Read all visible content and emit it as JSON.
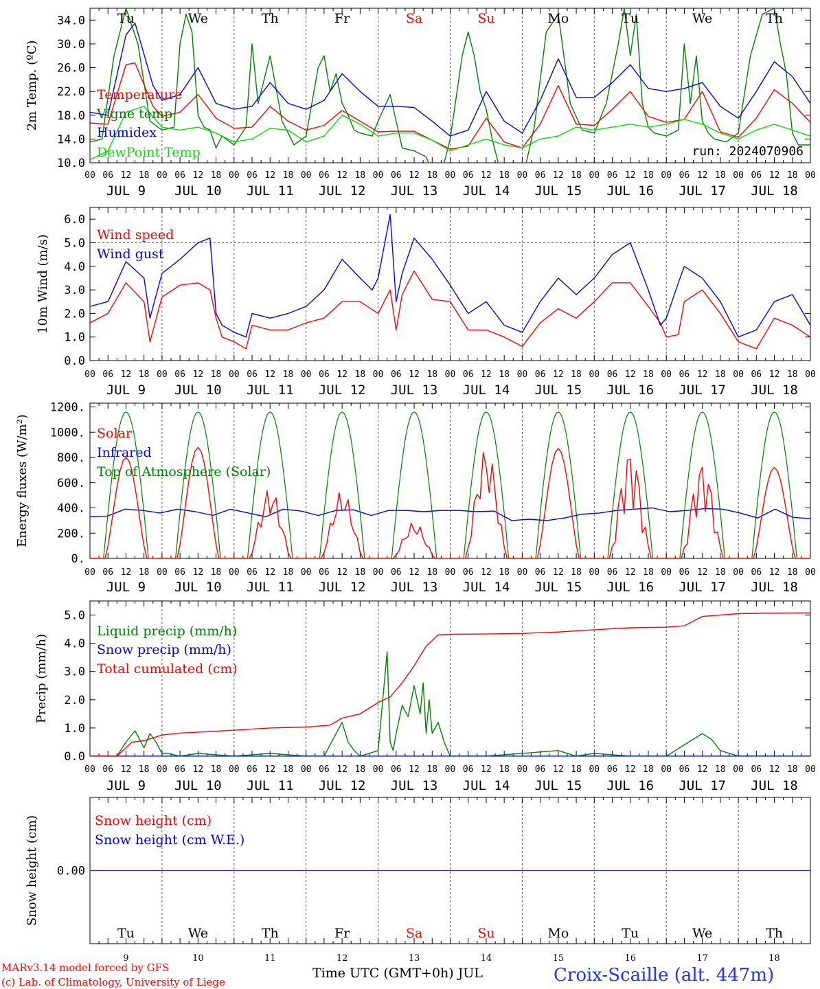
{
  "footer": {
    "model": "MARv3.14 model forced by GFS",
    "copyright": "(c) Lab. of Climatology, University of Liege",
    "time_label": "Time UTC (GMT+0h) JUL",
    "station": "Croix-Scaille (alt. 447m)",
    "run": "run: 2024070906"
  },
  "colors": {
    "red": "#ff0000",
    "green": "#008000",
    "blue": "#0000ff",
    "lightgreen": "#00e000",
    "purple": "#7b1fa2",
    "weekend": "#ff0000"
  },
  "days": [
    "Tu",
    "We",
    "Th",
    "Fr",
    "Sa",
    "Su",
    "Mo",
    "Tu",
    "We",
    "Th"
  ],
  "weekend_days": [
    4,
    5
  ],
  "dates": [
    "JUL  9",
    "JUL 10",
    "JUL 11",
    "JUL 12",
    "JUL 13",
    "JUL 14",
    "JUL 15",
    "JUL 16",
    "JUL 17",
    "JUL 18"
  ],
  "date_numbers": [
    "9",
    "10",
    "11",
    "12",
    "13",
    "14",
    "15",
    "16",
    "17",
    "18"
  ],
  "hour_ticks": [
    "00",
    "06",
    "12",
    "18"
  ],
  "chart_data": [
    {
      "id": "temp",
      "type": "line",
      "ylabel": "2m Temp. (ºC)",
      "ylim": [
        10,
        36
      ],
      "yticks": [
        "10.0",
        "14.0",
        "18.0",
        "22.0",
        "26.0",
        "30.0",
        "34.0"
      ],
      "ytick_values": [
        10,
        14,
        18,
        22,
        26,
        30,
        34
      ],
      "legend": [
        "Temperature",
        "Vigne temp",
        "Humidex",
        "DewPoint Temp"
      ],
      "x_unit": "hours since JUL 9 00 UTC",
      "series": [
        {
          "name": "Temperature",
          "color": "red",
          "x": [
            0,
            6,
            12,
            15,
            21,
            24,
            30,
            36,
            42,
            48,
            54,
            60,
            66,
            72,
            78,
            84,
            90,
            96,
            102,
            108,
            114,
            120,
            126,
            132,
            138,
            144,
            150,
            156,
            162,
            168,
            174,
            180,
            186,
            192,
            198,
            204,
            210,
            216,
            222,
            228,
            234,
            240
          ],
          "y": [
            16.7,
            16.5,
            26.5,
            26.8,
            19.5,
            17.8,
            18.5,
            21.5,
            17.5,
            15.8,
            16.0,
            19.5,
            17.0,
            15.5,
            16.3,
            18.8,
            17.0,
            15.2,
            15.3,
            15.3,
            13.8,
            12.3,
            12.8,
            17.5,
            13.5,
            12.5,
            16.5,
            23.0,
            16.5,
            16.3,
            19.0,
            22.0,
            17.8,
            16.8,
            17.3,
            22.0,
            15.2,
            14.3,
            17.5,
            22.3,
            20.0,
            16.8
          ]
        },
        {
          "name": "Vigne temp",
          "color": "green",
          "x": [
            0,
            4,
            8,
            12,
            16,
            20,
            24,
            28,
            30,
            32,
            34,
            36,
            38,
            40,
            42,
            44,
            48,
            52,
            54,
            56,
            60,
            64,
            66,
            68,
            72,
            76,
            78,
            80,
            82,
            84,
            86,
            88,
            90,
            94,
            96,
            100,
            104,
            108,
            112,
            116,
            120,
            124,
            126,
            128,
            130,
            132,
            134,
            136,
            138,
            140,
            144,
            148,
            152,
            156,
            160,
            164,
            168,
            172,
            176,
            178,
            180,
            182,
            184,
            186,
            188,
            192,
            196,
            198,
            200,
            202,
            204,
            206,
            208,
            212,
            216,
            220,
            224,
            228,
            230,
            232,
            234,
            236,
            240
          ],
          "y": [
            13.5,
            14.0,
            28.0,
            36.0,
            30.0,
            17.0,
            15.5,
            16.0,
            30.0,
            35.0,
            32.0,
            18.0,
            16.0,
            15.5,
            12.5,
            14.5,
            13.0,
            16.0,
            30.0,
            20.0,
            28.0,
            17.0,
            15.0,
            13.0,
            14.5,
            26.0,
            28.0,
            22.0,
            25.0,
            20.0,
            18.0,
            15.5,
            15.0,
            14.5,
            17.0,
            21.5,
            12.5,
            12.0,
            11.0,
            6.0,
            14.0,
            28.0,
            32.0,
            28.0,
            22.0,
            19.0,
            14.0,
            10.0,
            7.0,
            10.0,
            7.0,
            16.0,
            32.0,
            35.0,
            20.0,
            15.5,
            15.0,
            20.0,
            30.0,
            36.0,
            28.0,
            35.0,
            20.0,
            16.0,
            15.0,
            14.5,
            15.5,
            30.0,
            20.0,
            28.0,
            17.0,
            15.0,
            14.0,
            13.5,
            15.0,
            28.0,
            35.0,
            36.0,
            30.0,
            25.0,
            15.0,
            13.0,
            13.0
          ]
        },
        {
          "name": "Humidex",
          "color": "blue",
          "x": [
            0,
            6,
            12,
            15,
            21,
            24,
            30,
            36,
            42,
            48,
            54,
            60,
            66,
            72,
            78,
            84,
            90,
            96,
            102,
            108,
            114,
            120,
            126,
            132,
            138,
            144,
            150,
            156,
            162,
            168,
            174,
            180,
            186,
            192,
            198,
            204,
            210,
            216,
            222,
            228,
            234,
            240
          ],
          "y": [
            18.5,
            18.0,
            31.5,
            33.5,
            23.0,
            20.5,
            21.5,
            26.0,
            20.0,
            19.0,
            19.5,
            23.5,
            20.0,
            19.0,
            20.5,
            25.0,
            22.0,
            19.5,
            19.5,
            19.3,
            17.0,
            14.5,
            15.5,
            22.0,
            17.0,
            15.0,
            20.5,
            27.5,
            21.0,
            21.0,
            23.5,
            26.5,
            22.5,
            22.0,
            22.5,
            23.5,
            19.5,
            17.5,
            22.0,
            27.0,
            24.5,
            20.0
          ]
        },
        {
          "name": "DewPoint Temp",
          "color": "lightgreen",
          "x": [
            0,
            6,
            12,
            18,
            24,
            30,
            36,
            42,
            48,
            54,
            60,
            66,
            72,
            78,
            84,
            90,
            96,
            102,
            108,
            114,
            120,
            126,
            132,
            138,
            144,
            150,
            156,
            162,
            168,
            174,
            180,
            186,
            192,
            198,
            204,
            210,
            216,
            222,
            228,
            234,
            240
          ],
          "y": [
            10.5,
            12.0,
            18.5,
            19.5,
            16.0,
            15.5,
            16.0,
            15.0,
            13.5,
            14.0,
            15.8,
            15.5,
            13.5,
            14.5,
            18.0,
            16.5,
            14.5,
            15.0,
            15.0,
            13.8,
            12.0,
            13.0,
            14.0,
            13.0,
            12.5,
            14.0,
            14.5,
            16.0,
            15.5,
            16.0,
            16.5,
            16.0,
            16.5,
            17.3,
            16.5,
            15.0,
            14.0,
            15.5,
            16.5,
            15.5,
            14.5
          ]
        }
      ]
    },
    {
      "id": "wind",
      "type": "line",
      "ylabel": "10m Wind (m/s)",
      "ylim": [
        0,
        6.5
      ],
      "yticks": [
        "0.0",
        "1.0",
        "2.0",
        "3.0",
        "4.0",
        "5.0",
        "6.0"
      ],
      "ytick_values": [
        0,
        1,
        2,
        3,
        4,
        5,
        6
      ],
      "ref_line": 5.0,
      "legend": [
        "Wind speed",
        "Wind gust"
      ],
      "series": [
        {
          "name": "Wind speed",
          "color": "red",
          "x": [
            0,
            6,
            12,
            18,
            20,
            24,
            30,
            36,
            40,
            42,
            44,
            48,
            52,
            54,
            60,
            66,
            72,
            78,
            84,
            90,
            96,
            100,
            102,
            104,
            108,
            114,
            120,
            126,
            132,
            138,
            144,
            150,
            156,
            162,
            168,
            174,
            180,
            186,
            190,
            192,
            196,
            198,
            204,
            210,
            216,
            222,
            228,
            234,
            240
          ],
          "y": [
            1.6,
            2.0,
            3.3,
            2.5,
            0.8,
            2.7,
            3.2,
            3.3,
            3.0,
            1.8,
            1.0,
            0.8,
            0.5,
            1.5,
            1.3,
            1.3,
            1.6,
            1.8,
            2.5,
            2.5,
            2.0,
            3.0,
            1.3,
            2.8,
            3.8,
            2.6,
            2.5,
            1.3,
            1.3,
            1.0,
            0.6,
            1.6,
            2.2,
            1.8,
            2.5,
            3.3,
            3.3,
            2.3,
            1.6,
            1.0,
            1.1,
            2.5,
            3.0,
            2.0,
            0.8,
            0.5,
            1.8,
            1.5,
            1.0
          ]
        },
        {
          "name": "Wind gust",
          "color": "blue",
          "x": [
            0,
            6,
            12,
            18,
            20,
            24,
            30,
            36,
            40,
            42,
            44,
            48,
            52,
            54,
            60,
            66,
            72,
            78,
            84,
            90,
            94,
            96,
            100,
            102,
            104,
            108,
            114,
            120,
            126,
            132,
            138,
            144,
            150,
            156,
            162,
            168,
            174,
            180,
            186,
            190,
            192,
            196,
            198,
            204,
            210,
            216,
            222,
            228,
            234,
            240
          ],
          "y": [
            2.3,
            2.5,
            4.2,
            3.5,
            1.8,
            3.7,
            4.3,
            5.0,
            5.2,
            2.0,
            1.5,
            1.2,
            1.0,
            2.0,
            1.8,
            2.0,
            2.3,
            3.0,
            4.3,
            3.5,
            3.0,
            3.5,
            6.2,
            2.5,
            3.7,
            5.2,
            4.3,
            3.2,
            2.0,
            2.5,
            1.5,
            1.2,
            2.5,
            3.5,
            2.8,
            3.5,
            4.5,
            5.0,
            3.0,
            1.5,
            1.8,
            3.3,
            4.0,
            3.5,
            2.5,
            1.0,
            1.3,
            2.5,
            2.8,
            1.5
          ]
        }
      ]
    },
    {
      "id": "energy",
      "type": "line",
      "ylabel": "Energy fluxes (W/m²)",
      "ylim": [
        0,
        1230
      ],
      "yticks": [
        "0.",
        "200.",
        "400.",
        "600.",
        "800.",
        "1000.",
        "1200."
      ],
      "ytick_values": [
        0,
        200,
        400,
        600,
        800,
        1000,
        1200
      ],
      "legend": [
        "Solar",
        "Infrared",
        "Top of Atmosphere (Solar)"
      ],
      "toa_peak": 1160,
      "solar_peaks": [
        800,
        880,
        560,
        540,
        290,
        880,
        870,
        860,
        760,
        720
      ],
      "infrared": [
        330,
        335,
        390,
        380,
        360,
        390,
        370,
        340,
        390,
        360,
        330,
        390,
        375,
        340,
        380,
        385,
        340,
        380,
        380,
        370,
        380,
        380,
        370,
        375,
        300,
        310,
        300,
        320,
        350,
        360,
        380,
        390,
        400,
        370,
        380,
        395,
        390,
        360,
        320,
        390,
        325,
        315
      ],
      "series": [
        {
          "name": "Solar",
          "color": "red"
        },
        {
          "name": "Infrared",
          "color": "blue"
        },
        {
          "name": "Top of Atmosphere (Solar)",
          "color": "green"
        }
      ]
    },
    {
      "id": "precip",
      "type": "line",
      "ylabel": "Precip (mm/h)",
      "ylim": [
        0,
        5.5
      ],
      "yticks": [
        "0.0",
        "1.0",
        "2.0",
        "3.0",
        "4.0",
        "5.0"
      ],
      "ytick_values": [
        0,
        1,
        2,
        3,
        4,
        5
      ],
      "legend": [
        "Liquid precip (mm/h)",
        "Snow precip (mm/h)",
        "Total cumulated (cm)"
      ],
      "series": [
        {
          "name": "Liquid precip (mm/h)",
          "color": "green",
          "x": [
            0,
            9,
            12,
            15,
            18,
            20,
            22,
            24,
            26,
            30,
            36,
            48,
            60,
            72,
            78,
            84,
            86,
            88,
            90,
            96,
            99,
            100,
            101,
            102,
            104,
            106,
            108,
            110,
            111,
            112,
            113,
            114,
            116,
            118,
            120,
            132,
            156,
            162,
            168,
            180,
            192,
            204,
            207,
            210,
            216,
            240
          ],
          "y": [
            0,
            0,
            0.5,
            0.9,
            0.3,
            0.8,
            0.5,
            0.1,
            0.1,
            0,
            0.1,
            0,
            0.1,
            0,
            0,
            1.2,
            0.5,
            0.2,
            0,
            0.2,
            3.7,
            0.5,
            0.2,
            0.8,
            1.8,
            1.4,
            2.5,
            1.5,
            2.6,
            0.8,
            2.0,
            0.8,
            1.2,
            0.5,
            0,
            0,
            0.2,
            0,
            0.1,
            0,
            0,
            0.8,
            0.6,
            0.2,
            0,
            0
          ]
        },
        {
          "name": "Snow precip (mm/h)",
          "color": "blue",
          "x": [
            0,
            240
          ],
          "y": [
            0,
            0
          ]
        },
        {
          "name": "Total cumulated (cm)",
          "color": "red",
          "x": [
            0,
            9,
            14,
            18,
            24,
            30,
            36,
            48,
            60,
            72,
            80,
            84,
            90,
            96,
            100,
            104,
            108,
            112,
            116,
            120,
            132,
            144,
            156,
            168,
            180,
            192,
            198,
            204,
            216,
            228,
            240
          ],
          "y": [
            0,
            0,
            0.5,
            0.55,
            0.75,
            0.82,
            0.85,
            0.92,
            1.0,
            1.03,
            1.1,
            1.35,
            1.5,
            1.9,
            2.1,
            2.6,
            3.2,
            3.9,
            4.3,
            4.32,
            4.33,
            4.35,
            4.4,
            4.48,
            4.55,
            4.57,
            4.62,
            4.95,
            5.05,
            5.07,
            5.08
          ]
        }
      ]
    },
    {
      "id": "snow",
      "type": "line",
      "ylabel": "Snow height (cm)",
      "ylim": [
        -1,
        1
      ],
      "yticks": [
        "0.00"
      ],
      "ytick_values": [
        0
      ],
      "legend": [
        "Snow height (cm)",
        "Snow height (cm W.E.)"
      ],
      "series": [
        {
          "name": "Snow height (cm)",
          "color": "red",
          "x": [
            0,
            240
          ],
          "y": [
            0,
            0
          ]
        },
        {
          "name": "Snow height (cm W.E.)",
          "color": "blue",
          "x": [
            0,
            240
          ],
          "y": [
            0,
            0
          ]
        }
      ]
    }
  ]
}
